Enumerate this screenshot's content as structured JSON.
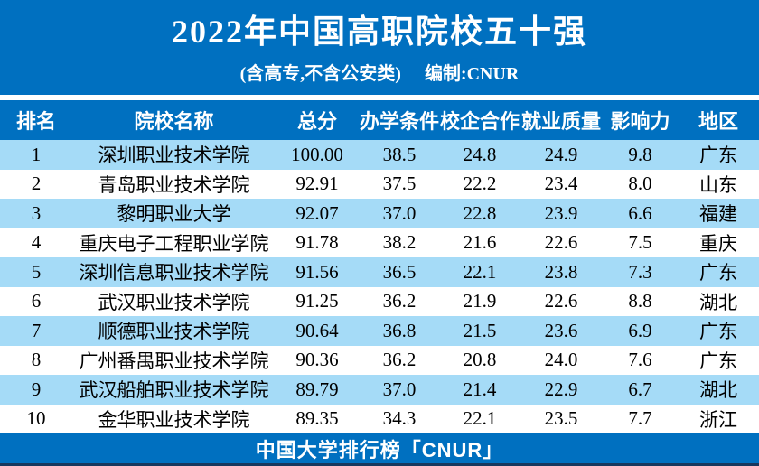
{
  "header": {
    "title": "2022年中国高职院校五十强",
    "scope_note": "(含高专,不含公安类)",
    "compiler": "编制:CNUR"
  },
  "table": {
    "columns": [
      "排名",
      "院校名称",
      "总分",
      "办学条件",
      "校企合作",
      "就业质量",
      "影响力",
      "地区"
    ],
    "rows": [
      {
        "rank": "1",
        "name": "深圳职业技术学院",
        "total": "100.00",
        "conditions": "38.5",
        "cooperation": "24.8",
        "employment": "24.9",
        "influence": "9.8",
        "region": "广东"
      },
      {
        "rank": "2",
        "name": "青岛职业技术学院",
        "total": "92.91",
        "conditions": "37.5",
        "cooperation": "22.2",
        "employment": "23.4",
        "influence": "8.0",
        "region": "山东"
      },
      {
        "rank": "3",
        "name": "黎明职业大学",
        "total": "92.07",
        "conditions": "37.0",
        "cooperation": "22.8",
        "employment": "23.9",
        "influence": "6.6",
        "region": "福建"
      },
      {
        "rank": "4",
        "name": "重庆电子工程职业学院",
        "total": "91.78",
        "conditions": "38.2",
        "cooperation": "21.6",
        "employment": "22.6",
        "influence": "7.5",
        "region": "重庆"
      },
      {
        "rank": "5",
        "name": "深圳信息职业技术学院",
        "total": "91.56",
        "conditions": "36.5",
        "cooperation": "22.1",
        "employment": "23.8",
        "influence": "7.3",
        "region": "广东"
      },
      {
        "rank": "6",
        "name": "武汉职业技术学院",
        "total": "91.25",
        "conditions": "36.2",
        "cooperation": "21.9",
        "employment": "22.6",
        "influence": "8.8",
        "region": "湖北"
      },
      {
        "rank": "7",
        "name": "顺德职业技术学院",
        "total": "90.64",
        "conditions": "36.8",
        "cooperation": "21.5",
        "employment": "23.6",
        "influence": "6.9",
        "region": "广东"
      },
      {
        "rank": "8",
        "name": "广州番禺职业技术学院",
        "total": "90.36",
        "conditions": "36.2",
        "cooperation": "20.8",
        "employment": "24.0",
        "influence": "7.6",
        "region": "广东"
      },
      {
        "rank": "9",
        "name": "武汉船舶职业技术学院",
        "total": "89.79",
        "conditions": "37.0",
        "cooperation": "21.4",
        "employment": "22.9",
        "influence": "6.7",
        "region": "湖北"
      },
      {
        "rank": "10",
        "name": "金华职业技术学院",
        "total": "89.35",
        "conditions": "34.3",
        "cooperation": "22.1",
        "employment": "23.5",
        "influence": "7.7",
        "region": "浙江"
      }
    ]
  },
  "footer": {
    "text": "中国大学排行榜「CNUR」"
  },
  "colors": {
    "primary_blue": "#0070C0",
    "row_alt_blue": "#A5DBF7",
    "dark_navy": "#17375E",
    "text_white": "#FFFFFF",
    "text_black": "#000000"
  }
}
